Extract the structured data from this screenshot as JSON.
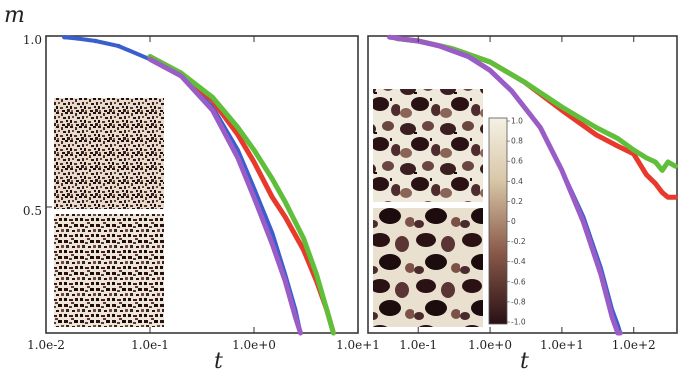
{
  "chart_data": [
    {
      "type": "line",
      "panel": "left",
      "ylabel": "m",
      "xlabel": "t",
      "xscale": "log",
      "yscale": "log",
      "xlim": [
        0.01,
        10
      ],
      "ylim": [
        0.3,
        1.0
      ],
      "xticks": [
        {
          "value": 0.01,
          "label": "1.0e-2"
        },
        {
          "value": 0.1,
          "label": "1.0e-1"
        },
        {
          "value": 1,
          "label": "1.0e+0"
        },
        {
          "value": 10,
          "label": "1.0e+1"
        }
      ],
      "yticks": [
        {
          "value": 1.0,
          "label": "1.0"
        },
        {
          "value": 0.5,
          "label": "0.5"
        }
      ],
      "grid": false,
      "insets": 2,
      "series": [
        {
          "color": "#3a5fcd",
          "x": [
            0.015,
            0.02,
            0.03,
            0.05,
            0.1,
            0.2,
            0.4,
            0.7,
            1.0,
            1.5,
            2.0,
            2.5,
            2.8
          ],
          "y": [
            0.995,
            0.99,
            0.98,
            0.96,
            0.91,
            0.85,
            0.75,
            0.63,
            0.54,
            0.45,
            0.38,
            0.33,
            0.3
          ]
        },
        {
          "color": "#e83a2c",
          "x": [
            0.1,
            0.2,
            0.4,
            0.7,
            1.0,
            1.5,
            2.0,
            3.0,
            4.0,
            5.0,
            5.8
          ],
          "y": [
            0.92,
            0.86,
            0.77,
            0.67,
            0.6,
            0.52,
            0.48,
            0.42,
            0.37,
            0.33,
            0.3
          ]
        },
        {
          "color": "#5fbf3a",
          "x": [
            0.1,
            0.2,
            0.4,
            0.7,
            1.0,
            1.5,
            2.0,
            3.0,
            4.0,
            5.0,
            5.8
          ],
          "y": [
            0.92,
            0.86,
            0.78,
            0.69,
            0.63,
            0.56,
            0.51,
            0.44,
            0.38,
            0.33,
            0.3
          ]
        },
        {
          "color": "#9a5cc6",
          "x": [
            0.1,
            0.2,
            0.4,
            0.7,
            1.0,
            1.5,
            2.0,
            2.5,
            2.8
          ],
          "y": [
            0.91,
            0.85,
            0.74,
            0.61,
            0.52,
            0.43,
            0.37,
            0.32,
            0.3
          ]
        }
      ]
    },
    {
      "type": "line",
      "panel": "right",
      "xlabel": "t",
      "xscale": "log",
      "yscale": "log",
      "xlim": [
        0.02,
        400
      ],
      "ylim": [
        0.3,
        1.0
      ],
      "xticks": [
        {
          "value": 0.1,
          "label": "1.0e-1"
        },
        {
          "value": 1,
          "label": "1.0e+0"
        },
        {
          "value": 10,
          "label": "1.0e+1"
        },
        {
          "value": 100,
          "label": "1.0e+2"
        }
      ],
      "grid": false,
      "insets": 2,
      "colorbar": {
        "range": [
          -1.0,
          1.0
        ],
        "labels": [
          "1.0",
          "0.8",
          "0.6",
          "0.4",
          "0.2",
          "0",
          "-0.2",
          "-0.4",
          "-0.6",
          "-0.8",
          "-1.0"
        ],
        "colors": [
          "#f4f1e4",
          "#d9c7a8",
          "#8a5a4a",
          "#2a1014"
        ]
      },
      "series": [
        {
          "color": "#3a5fcd",
          "x": [
            0.04,
            0.1,
            0.2,
            0.5,
            1,
            2,
            5,
            10,
            20,
            35,
            50,
            60,
            65
          ],
          "y": [
            0.995,
            0.98,
            0.96,
            0.92,
            0.87,
            0.8,
            0.69,
            0.58,
            0.48,
            0.39,
            0.33,
            0.31,
            0.3
          ]
        },
        {
          "color": "#e83a2c",
          "x": [
            0.05,
            0.1,
            0.3,
            1,
            3,
            10,
            30,
            60,
            100,
            150,
            200,
            250,
            300,
            380
          ],
          "y": [
            0.99,
            0.98,
            0.95,
            0.9,
            0.83,
            0.74,
            0.67,
            0.64,
            0.62,
            0.57,
            0.55,
            0.53,
            0.52,
            0.52
          ]
        },
        {
          "color": "#5fbf3a",
          "x": [
            0.05,
            0.1,
            0.3,
            1,
            3,
            10,
            30,
            60,
            100,
            150,
            200,
            250,
            300,
            380
          ],
          "y": [
            0.99,
            0.98,
            0.95,
            0.9,
            0.83,
            0.75,
            0.69,
            0.66,
            0.63,
            0.61,
            0.6,
            0.58,
            0.6,
            0.59
          ]
        },
        {
          "color": "#9a5cc6",
          "x": [
            0.04,
            0.1,
            0.2,
            0.5,
            1,
            2,
            5,
            10,
            20,
            35,
            50,
            60,
            65
          ],
          "y": [
            0.995,
            0.98,
            0.96,
            0.92,
            0.87,
            0.8,
            0.69,
            0.58,
            0.47,
            0.38,
            0.32,
            0.3,
            0.3
          ]
        }
      ]
    }
  ]
}
